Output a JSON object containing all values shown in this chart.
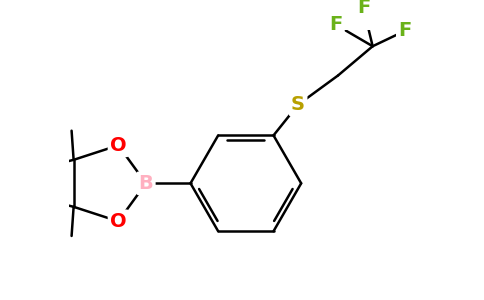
{
  "background_color": "#ffffff",
  "bond_color": "#000000",
  "atom_colors": {
    "B": "#ffb0c0",
    "O": "#ff0000",
    "S": "#b8a000",
    "F": "#6ab21a",
    "C": "#000000"
  },
  "bond_width": 1.8,
  "font_size_atoms": 14,
  "figsize": [
    4.84,
    3.0
  ],
  "dpi": 100
}
